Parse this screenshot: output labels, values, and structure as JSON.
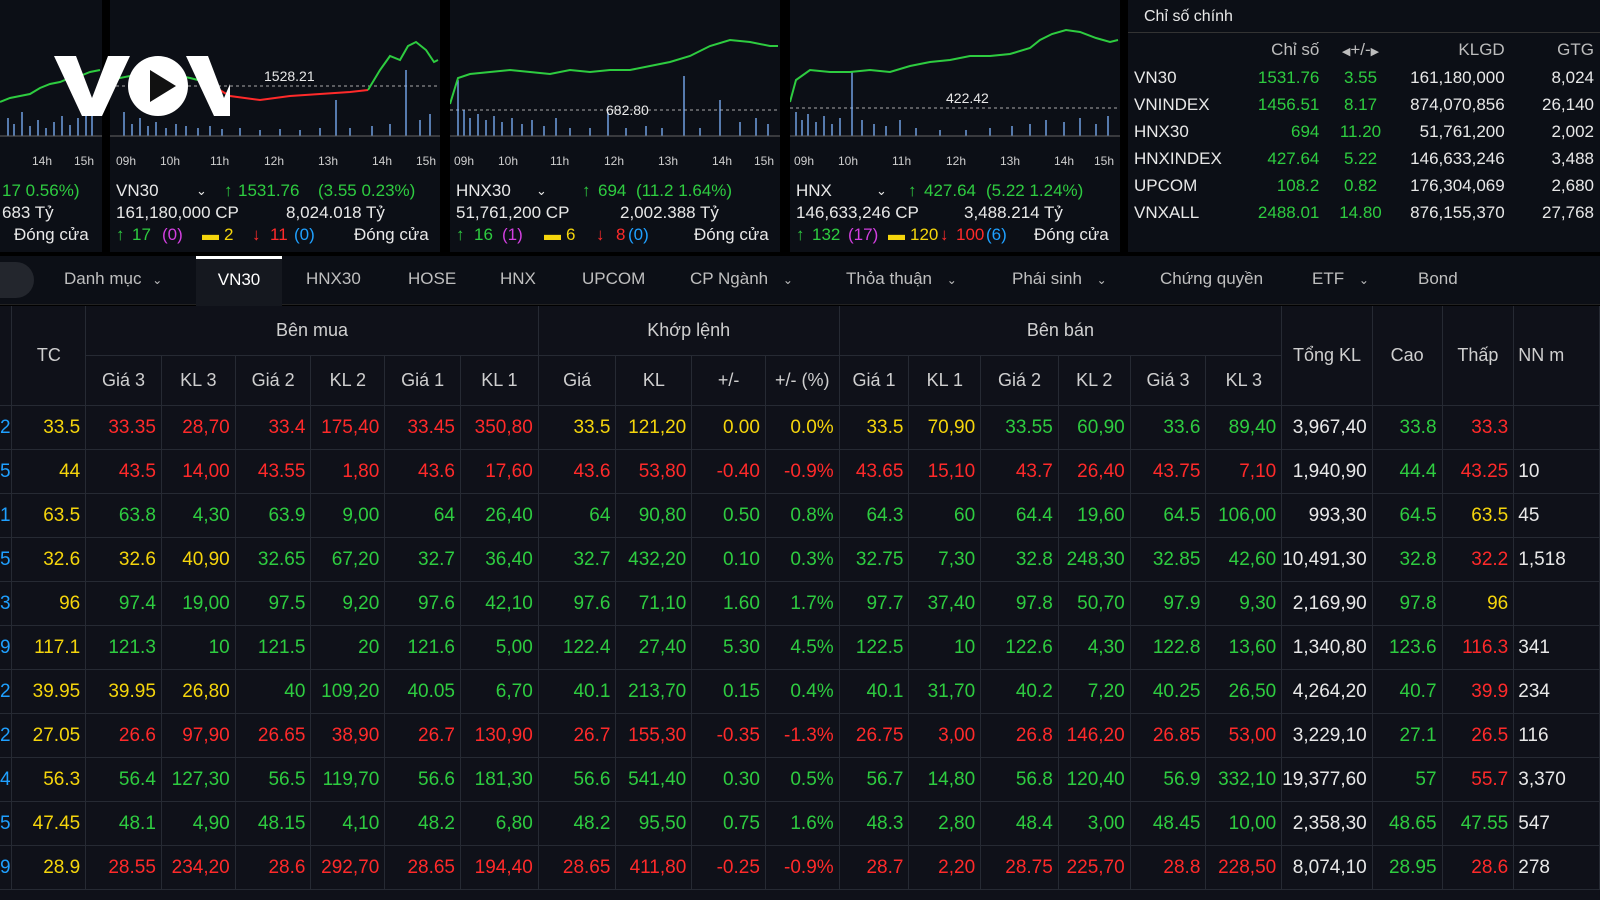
{
  "logo_text": "VOV",
  "panels": [
    {
      "id": "p0",
      "left": 0,
      "width": 102,
      "ticks": [
        "14h",
        "15h"
      ],
      "info": {
        "change": "17  0.56%)",
        "value_line": "683 Tỷ",
        "status": "Đóng cửa"
      }
    },
    {
      "id": "vn30",
      "ticks": [
        "09h",
        "10h",
        "11h",
        "12h",
        "13h",
        "14h",
        "15h"
      ],
      "ref_value": "1528.21",
      "info": {
        "name": "VN30",
        "price": "1531.76",
        "change": "(3.55  0.23%)",
        "volume": "161,180,000 CP",
        "value": "8,024.018 Tỷ",
        "up": "17",
        "up_ceiling": "(0)",
        "unchanged": "2",
        "down": "11",
        "down_floor": "(0)",
        "status": "Đóng cửa"
      }
    },
    {
      "id": "hnx30",
      "ticks": [
        "09h",
        "10h",
        "11h",
        "12h",
        "13h",
        "14h",
        "15h"
      ],
      "ref_value": "682.80",
      "info": {
        "name": "HNX30",
        "price": "694",
        "change": "(11.2  1.64%)",
        "volume": "51,761,200 CP",
        "value": "2,002.388 Tỷ",
        "up": "16",
        "up_ceiling": "(1)",
        "unchanged": "6",
        "down": "8",
        "down_floor": "(0)",
        "status": "Đóng cửa"
      }
    },
    {
      "id": "hnx",
      "ticks": [
        "09h",
        "10h",
        "11h",
        "12h",
        "13h",
        "14h",
        "15h"
      ],
      "ref_value": "422.42",
      "info": {
        "name": "HNX",
        "price": "427.64",
        "change": "(5.22  1.24%)",
        "volume": "146,633,246 CP",
        "value": "3,488.214 Tỷ",
        "up": "132",
        "up_ceiling": "(17)",
        "unchanged": "120",
        "down": "100",
        "down_floor": "(6)",
        "status": "Đóng cửa"
      }
    }
  ],
  "index_table": {
    "title": "Chỉ số chính",
    "columns": [
      "",
      "Chỉ số",
      "+/-",
      "KLGD",
      "GTG"
    ],
    "rows": [
      {
        "name": "VN30",
        "value": "1531.76",
        "change": "3.55",
        "volume": "161,180,000",
        "gtgd": "8,024"
      },
      {
        "name": "VNINDEX",
        "value": "1456.51",
        "change": "8.17",
        "volume": "874,070,856",
        "gtgd": "26,140"
      },
      {
        "name": "HNX30",
        "value": "694",
        "change": "11.20",
        "volume": "51,761,200",
        "gtgd": "2,002"
      },
      {
        "name": "HNXINDEX",
        "value": "427.64",
        "change": "5.22",
        "volume": "146,633,246",
        "gtgd": "3,488"
      },
      {
        "name": "UPCOM",
        "value": "108.2",
        "change": "0.82",
        "volume": "176,304,069",
        "gtgd": "2,680"
      },
      {
        "name": "VNXALL",
        "value": "2488.01",
        "change": "14.80",
        "volume": "876,155,370",
        "gtgd": "27,768"
      }
    ]
  },
  "tabs": [
    {
      "label": "Danh mục",
      "dropdown": true
    },
    {
      "label": "VN30",
      "dropdown": false,
      "active": true
    },
    {
      "label": "HNX30",
      "dropdown": false
    },
    {
      "label": "HOSE",
      "dropdown": false
    },
    {
      "label": "HNX",
      "dropdown": false
    },
    {
      "label": "UPCOM",
      "dropdown": false
    },
    {
      "label": "CP Ngành",
      "dropdown": true
    },
    {
      "label": "Thỏa thuận",
      "dropdown": true
    },
    {
      "label": "Phái sinh",
      "dropdown": true
    },
    {
      "label": "Chứng quyền",
      "dropdown": false
    },
    {
      "label": "ETF",
      "dropdown": true
    },
    {
      "label": "Bond",
      "dropdown": false
    }
  ],
  "board": {
    "group_headers": {
      "tc": "TC",
      "buy": "Bên mua",
      "match": "Khớp lệnh",
      "sell": "Bên bán",
      "total": "Tổng KL",
      "high": "Cao",
      "low": "Thấp",
      "foreign": "NN m"
    },
    "sub_headers": [
      "Giá 3",
      "KL 3",
      "Giá 2",
      "KL 2",
      "Giá 1",
      "KL 1",
      "Giá",
      "KL",
      "+/-",
      "+/- (%)",
      "Giá 1",
      "KL 1",
      "Giá 2",
      "KL 2",
      "Giá 3",
      "KL 3"
    ],
    "rows": [
      {
        "edge": "2",
        "tc": "33.5",
        "cells": [
          "33.35",
          "28,70",
          "33.4",
          "175,40",
          "33.45",
          "350,80",
          "33.5",
          "121,20",
          "0.00",
          "0.0%",
          "33.5",
          "70,90",
          "33.55",
          "60,90",
          "33.6",
          "89,40"
        ],
        "colors": [
          "r",
          "r",
          "r",
          "r",
          "r",
          "r",
          "y",
          "y",
          "y",
          "y",
          "y",
          "y",
          "g",
          "g",
          "g",
          "g"
        ],
        "total": "3,967,40",
        "high": "33.8",
        "high_c": "g",
        "low": "33.3",
        "low_c": "r",
        "nn": ""
      },
      {
        "edge": "5",
        "tc": "44",
        "cells": [
          "43.5",
          "14,00",
          "43.55",
          "1,80",
          "43.6",
          "17,60",
          "43.6",
          "53,80",
          "-0.40",
          "-0.9%",
          "43.65",
          "15,10",
          "43.7",
          "26,40",
          "43.75",
          "7,10"
        ],
        "colors": [
          "r",
          "r",
          "r",
          "r",
          "r",
          "r",
          "r",
          "r",
          "r",
          "r",
          "r",
          "r",
          "r",
          "r",
          "r",
          "r"
        ],
        "total": "1,940,90",
        "high": "44.4",
        "high_c": "g",
        "low": "43.25",
        "low_c": "r",
        "nn": "10"
      },
      {
        "edge": "1",
        "tc": "63.5",
        "cells": [
          "63.8",
          "4,30",
          "63.9",
          "9,00",
          "64",
          "26,40",
          "64",
          "90,80",
          "0.50",
          "0.8%",
          "64.3",
          "60",
          "64.4",
          "19,60",
          "64.5",
          "106,00"
        ],
        "colors": [
          "g",
          "g",
          "g",
          "g",
          "g",
          "g",
          "g",
          "g",
          "g",
          "g",
          "g",
          "g",
          "g",
          "g",
          "g",
          "g"
        ],
        "total": "993,30",
        "high": "64.5",
        "high_c": "g",
        "low": "63.5",
        "low_c": "y",
        "nn": "45"
      },
      {
        "edge": "5",
        "tc": "32.6",
        "cells": [
          "32.6",
          "40,90",
          "32.65",
          "67,20",
          "32.7",
          "36,40",
          "32.7",
          "432,20",
          "0.10",
          "0.3%",
          "32.75",
          "7,30",
          "32.8",
          "248,30",
          "32.85",
          "42,60"
        ],
        "colors": [
          "y",
          "y",
          "g",
          "g",
          "g",
          "g",
          "g",
          "g",
          "g",
          "g",
          "g",
          "g",
          "g",
          "g",
          "g",
          "g"
        ],
        "total": "10,491,30",
        "high": "32.8",
        "high_c": "g",
        "low": "32.2",
        "low_c": "r",
        "nn": "1,518"
      },
      {
        "edge": "3",
        "tc": "96",
        "cells": [
          "97.4",
          "19,00",
          "97.5",
          "9,20",
          "97.6",
          "42,10",
          "97.6",
          "71,10",
          "1.60",
          "1.7%",
          "97.7",
          "37,40",
          "97.8",
          "50,70",
          "97.9",
          "9,30"
        ],
        "colors": [
          "g",
          "g",
          "g",
          "g",
          "g",
          "g",
          "g",
          "g",
          "g",
          "g",
          "g",
          "g",
          "g",
          "g",
          "g",
          "g"
        ],
        "total": "2,169,90",
        "high": "97.8",
        "high_c": "g",
        "low": "96",
        "low_c": "y",
        "nn": ""
      },
      {
        "edge": "9",
        "tc": "117.1",
        "cells": [
          "121.3",
          "10",
          "121.5",
          "20",
          "121.6",
          "5,00",
          "122.4",
          "27,40",
          "5.30",
          "4.5%",
          "122.5",
          "10",
          "122.6",
          "4,30",
          "122.8",
          "13,60"
        ],
        "colors": [
          "g",
          "g",
          "g",
          "g",
          "g",
          "g",
          "g",
          "g",
          "g",
          "g",
          "g",
          "g",
          "g",
          "g",
          "g",
          "g"
        ],
        "total": "1,340,80",
        "high": "123.6",
        "high_c": "g",
        "low": "116.3",
        "low_c": "r",
        "nn": "341"
      },
      {
        "edge": "2",
        "tc": "39.95",
        "cells": [
          "39.95",
          "26,80",
          "40",
          "109,20",
          "40.05",
          "6,70",
          "40.1",
          "213,70",
          "0.15",
          "0.4%",
          "40.1",
          "31,70",
          "40.2",
          "7,20",
          "40.25",
          "26,50"
        ],
        "colors": [
          "y",
          "y",
          "g",
          "g",
          "g",
          "g",
          "g",
          "g",
          "g",
          "g",
          "g",
          "g",
          "g",
          "g",
          "g",
          "g"
        ],
        "total": "4,264,20",
        "high": "40.7",
        "high_c": "g",
        "low": "39.9",
        "low_c": "r",
        "nn": "234"
      },
      {
        "edge": "2",
        "tc": "27.05",
        "cells": [
          "26.6",
          "97,90",
          "26.65",
          "38,90",
          "26.7",
          "130,90",
          "26.7",
          "155,30",
          "-0.35",
          "-1.3%",
          "26.75",
          "3,00",
          "26.8",
          "146,20",
          "26.85",
          "53,00"
        ],
        "colors": [
          "r",
          "r",
          "r",
          "r",
          "r",
          "r",
          "r",
          "r",
          "r",
          "r",
          "r",
          "r",
          "r",
          "r",
          "r",
          "r"
        ],
        "total": "3,229,10",
        "high": "27.1",
        "high_c": "g",
        "low": "26.5",
        "low_c": "r",
        "nn": "116"
      },
      {
        "edge": "4",
        "tc": "56.3",
        "cells": [
          "56.4",
          "127,30",
          "56.5",
          "119,70",
          "56.6",
          "181,30",
          "56.6",
          "541,40",
          "0.30",
          "0.5%",
          "56.7",
          "14,80",
          "56.8",
          "120,40",
          "56.9",
          "332,10"
        ],
        "colors": [
          "g",
          "g",
          "g",
          "g",
          "g",
          "g",
          "g",
          "g",
          "g",
          "g",
          "g",
          "g",
          "g",
          "g",
          "g",
          "g"
        ],
        "total": "19,377,60",
        "high": "57",
        "high_c": "g",
        "low": "55.7",
        "low_c": "r",
        "nn": "3,370"
      },
      {
        "edge": "5",
        "tc": "47.45",
        "cells": [
          "48.1",
          "4,90",
          "48.15",
          "4,10",
          "48.2",
          "6,80",
          "48.2",
          "95,50",
          "0.75",
          "1.6%",
          "48.3",
          "2,80",
          "48.4",
          "3,00",
          "48.45",
          "10,00"
        ],
        "colors": [
          "g",
          "g",
          "g",
          "g",
          "g",
          "g",
          "g",
          "g",
          "g",
          "g",
          "g",
          "g",
          "g",
          "g",
          "g",
          "g"
        ],
        "total": "2,358,30",
        "high": "48.65",
        "high_c": "g",
        "low": "47.55",
        "low_c": "g",
        "nn": "547"
      },
      {
        "edge": "9",
        "tc": "28.9",
        "cells": [
          "28.55",
          "234,20",
          "28.6",
          "292,70",
          "28.65",
          "194,40",
          "28.65",
          "411,80",
          "-0.25",
          "-0.9%",
          "28.7",
          "2,20",
          "28.75",
          "225,70",
          "28.8",
          "228,50"
        ],
        "colors": [
          "r",
          "r",
          "r",
          "r",
          "r",
          "r",
          "r",
          "r",
          "r",
          "r",
          "r",
          "r",
          "r",
          "r",
          "r",
          "r"
        ],
        "total": "8,074,10",
        "high": "28.95",
        "high_c": "g",
        "low": "28.6",
        "low_c": "r",
        "nn": "278"
      }
    ]
  },
  "colors": {
    "up": "#2ecc40",
    "down": "#ff2a2a",
    "ref": "#f5d50c",
    "ceiling": "#d23fe0",
    "floor": "#1fa0ff"
  }
}
